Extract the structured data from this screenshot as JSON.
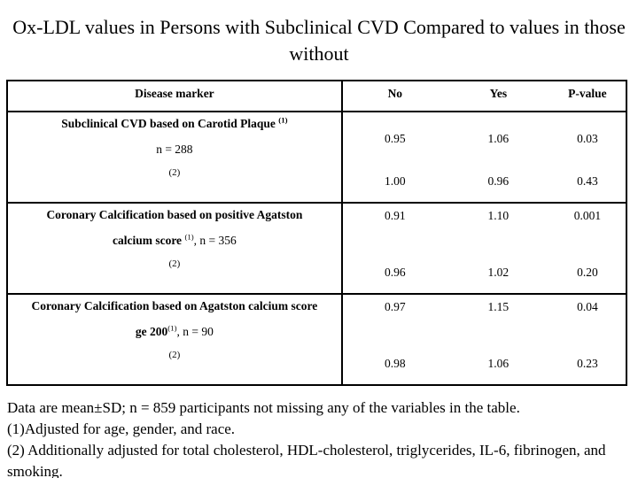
{
  "slide": {
    "title": "Ox-LDL values in Persons with Subclinical CVD Compared to values in those without"
  },
  "table": {
    "headers": {
      "marker": "Disease marker",
      "no": "No",
      "yes": "Yes",
      "pvalue": "P-value"
    },
    "sections": [
      {
        "line1_bold": "Subclinical CVD based on Carotid Plaque ",
        "line1_sup": "(1)",
        "line2_bold": "",
        "line2_sup": "",
        "line2_text": "n = 288",
        "line3": "(2)",
        "values1": [
          "0.95",
          "1.06",
          "0.03"
        ],
        "values2": [
          "1.00",
          "0.96",
          "0.43"
        ]
      },
      {
        "line1_bold": "Coronary Calcification based on positive Agatston",
        "line1_sup": "",
        "line2_bold": "calcium score ",
        "line2_sup": "(1)",
        "line2_text": ", n = 356",
        "line3": "(2)",
        "values1": [
          "0.91",
          "1.10",
          "0.001"
        ],
        "values2": [
          "0.96",
          "1.02",
          "0.20"
        ]
      },
      {
        "line1_bold": "Coronary Calcification based on Agatston calcium score",
        "line1_sup": "",
        "line2_bold": "ge 200",
        "line2_sup": "(1)",
        "line2_text": ", n = 90",
        "line3": "(2)",
        "values1": [
          "0.97",
          "1.15",
          "0.04"
        ],
        "values2": [
          "0.98",
          "1.06",
          "0.23"
        ]
      }
    ]
  },
  "footnotes": {
    "line1": "Data are mean±SD; n = 859 participants not missing any of the variables in the table.",
    "line2": "(1)Adjusted for age, gender, and race.",
    "line3": "(2)  Additionally adjusted for total cholesterol, HDL-cholesterol, triglycerides, IL-6, fibrinogen, and smoking."
  }
}
